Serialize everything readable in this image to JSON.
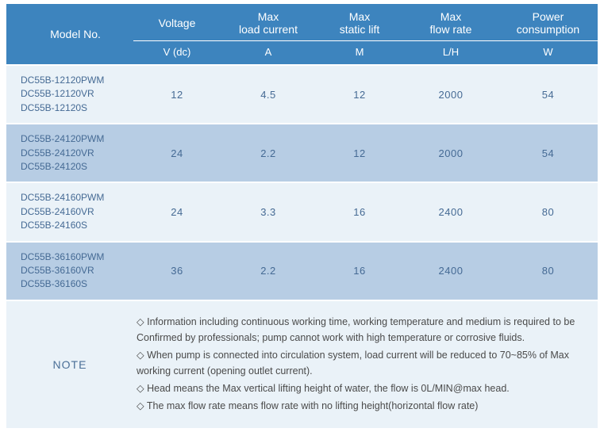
{
  "colors": {
    "header_bg": "#3d84be",
    "header_text": "#ffffff",
    "row_light_bg": "#eaf2f8",
    "row_dark_bg": "#b7cde4",
    "cell_text": "#456a94",
    "note_text": "#4a4a4a"
  },
  "columns": {
    "model": {
      "label": "Model No.",
      "unit": ""
    },
    "voltage": {
      "label": "Voltage",
      "unit": "V (dc)"
    },
    "load_current": {
      "label": "Max\nload current",
      "unit": "A"
    },
    "static_lift": {
      "label": "Max\nstatic lift",
      "unit": "M"
    },
    "flow_rate": {
      "label": "Max\nflow rate",
      "unit": "L/H"
    },
    "power": {
      "label": "Power\nconsumption",
      "unit": "W"
    }
  },
  "rows": [
    {
      "models": [
        "DC55B-12120PWM",
        "DC55B-12120VR",
        "DC55B-12120S"
      ],
      "voltage": "12",
      "load_current": "4.5",
      "static_lift": "12",
      "flow_rate": "2000",
      "power": "54"
    },
    {
      "models": [
        "DC55B-24120PWM",
        "DC55B-24120VR",
        "DC55B-24120S"
      ],
      "voltage": "24",
      "load_current": "2.2",
      "static_lift": "12",
      "flow_rate": "2000",
      "power": "54"
    },
    {
      "models": [
        "DC55B-24160PWM",
        "DC55B-24160VR",
        "DC55B-24160S"
      ],
      "voltage": "24",
      "load_current": "3.3",
      "static_lift": "16",
      "flow_rate": "2400",
      "power": "80"
    },
    {
      "models": [
        "DC55B-36160PWM",
        "DC55B-36160VR",
        "DC55B-36160S"
      ],
      "voltage": "36",
      "load_current": "2.2",
      "static_lift": "16",
      "flow_rate": "2400",
      "power": "80"
    }
  ],
  "note": {
    "label": "NOTE",
    "bullet": "◇",
    "items": [
      "Information including continuous working time, working temperature and medium is required to be Confirmed by professionals; pump cannot work with high temperature or corrosive fluids.",
      "When pump is connected into circulation system, load current will be reduced to 70~85% of Max working current (opening outlet current).",
      "Head means the Max vertical lifting height of water, the flow is 0L/MIN@max head.",
      "The max flow rate means flow rate with no lifting height(horizontal flow rate)"
    ]
  }
}
